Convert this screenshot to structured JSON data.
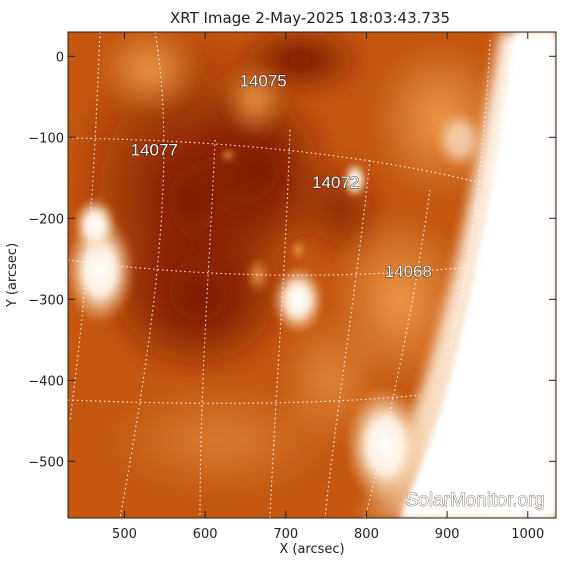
{
  "title": "XRT Image   2-May-2025  18:03:43.735",
  "x_axis": {
    "label": "X (arcsec)",
    "ticks": [
      "500",
      "600",
      "700",
      "800",
      "900",
      "1000"
    ],
    "range": [
      430,
      1035
    ]
  },
  "y_axis": {
    "label": "Y (arcsec)",
    "ticks": [
      "0",
      "−100",
      "−200",
      "−300",
      "−400",
      "−500"
    ],
    "range": [
      -570,
      30
    ]
  },
  "active_regions": [
    {
      "number": "14075",
      "x": 655,
      "y": -30
    },
    {
      "number": "14077",
      "x": 520,
      "y": -115
    },
    {
      "number": "14072",
      "x": 745,
      "y": -155
    },
    {
      "number": "14068",
      "x": 835,
      "y": -265
    }
  ],
  "watermark": "SolarMonitor.org",
  "colors": {
    "dark": "#8a1d00",
    "mid": "#c85a10",
    "light": "#e89040",
    "bright": "#ffffff",
    "grid": "#ffffff"
  }
}
